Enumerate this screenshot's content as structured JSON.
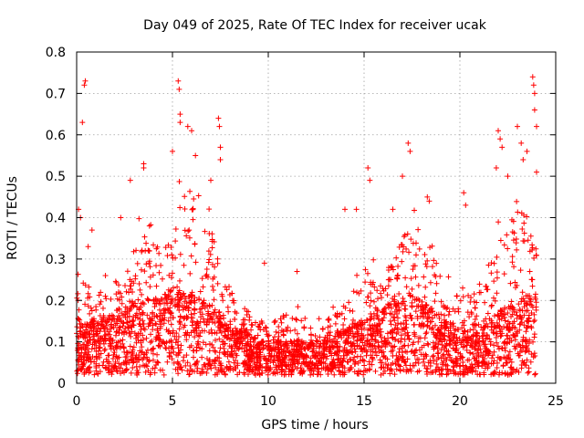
{
  "chart_data": {
    "type": "scatter",
    "title": "Day 049 of 2025, Rate Of TEC Index for receiver ucak",
    "xlabel": "GPS time / hours",
    "ylabel": "ROTI / TECUs",
    "xlim": [
      0,
      25
    ],
    "ylim": [
      0,
      0.8
    ],
    "xticks": [
      "0",
      "5",
      "10",
      "15",
      "20",
      "25"
    ],
    "yticks": [
      "0",
      "0.1",
      "0.2",
      "0.3",
      "0.4",
      "0.5",
      "0.6",
      "0.7",
      "0.8"
    ],
    "grid": true,
    "marker": "+",
    "color": "#ff0000",
    "envelope": {
      "hours": [
        0,
        0.5,
        1,
        1.5,
        2,
        2.5,
        3,
        3.5,
        4,
        4.5,
        5,
        5.5,
        6,
        6.5,
        7,
        7.5,
        8,
        8.5,
        9,
        9.5,
        10,
        10.5,
        11,
        11.5,
        12,
        12.5,
        13,
        13.5,
        14,
        14.5,
        15,
        15.5,
        16,
        16.5,
        17,
        17.5,
        18,
        18.5,
        19,
        19.5,
        20,
        20.5,
        21,
        21.5,
        22,
        22.5,
        23,
        23.5,
        24
      ],
      "typical_roti": [
        0.1,
        0.09,
        0.1,
        0.1,
        0.11,
        0.12,
        0.12,
        0.13,
        0.13,
        0.14,
        0.15,
        0.15,
        0.14,
        0.13,
        0.12,
        0.11,
        0.09,
        0.08,
        0.07,
        0.06,
        0.06,
        0.06,
        0.06,
        0.06,
        0.06,
        0.06,
        0.06,
        0.07,
        0.08,
        0.09,
        0.1,
        0.11,
        0.12,
        0.13,
        0.14,
        0.14,
        0.13,
        0.12,
        0.1,
        0.09,
        0.08,
        0.08,
        0.09,
        0.1,
        0.11,
        0.12,
        0.13,
        0.14,
        0.14
      ],
      "upper_roti": [
        0.3,
        0.28,
        0.25,
        0.26,
        0.28,
        0.3,
        0.38,
        0.42,
        0.4,
        0.4,
        0.48,
        0.55,
        0.5,
        0.45,
        0.42,
        0.35,
        0.28,
        0.22,
        0.2,
        0.18,
        0.17,
        0.18,
        0.18,
        0.19,
        0.18,
        0.17,
        0.17,
        0.2,
        0.22,
        0.26,
        0.32,
        0.3,
        0.3,
        0.35,
        0.4,
        0.45,
        0.42,
        0.38,
        0.3,
        0.25,
        0.24,
        0.25,
        0.28,
        0.32,
        0.4,
        0.45,
        0.5,
        0.48,
        0.4
      ]
    },
    "highlights": [
      {
        "x": 0.1,
        "y": 0.42
      },
      {
        "x": 0.2,
        "y": 0.4
      },
      {
        "x": 0.3,
        "y": 0.63
      },
      {
        "x": 0.4,
        "y": 0.72
      },
      {
        "x": 0.45,
        "y": 0.73
      },
      {
        "x": 0.6,
        "y": 0.33
      },
      {
        "x": 0.8,
        "y": 0.37
      },
      {
        "x": 2.3,
        "y": 0.4
      },
      {
        "x": 2.8,
        "y": 0.49
      },
      {
        "x": 3.5,
        "y": 0.52
      },
      {
        "x": 3.5,
        "y": 0.53
      },
      {
        "x": 3.8,
        "y": 0.38
      },
      {
        "x": 5.0,
        "y": 0.56
      },
      {
        "x": 5.3,
        "y": 0.73
      },
      {
        "x": 5.35,
        "y": 0.71
      },
      {
        "x": 5.4,
        "y": 0.65
      },
      {
        "x": 5.4,
        "y": 0.63
      },
      {
        "x": 5.8,
        "y": 0.62
      },
      {
        "x": 6.0,
        "y": 0.61
      },
      {
        "x": 6.2,
        "y": 0.55
      },
      {
        "x": 7.0,
        "y": 0.49
      },
      {
        "x": 7.4,
        "y": 0.64
      },
      {
        "x": 7.45,
        "y": 0.62
      },
      {
        "x": 7.5,
        "y": 0.57
      },
      {
        "x": 7.5,
        "y": 0.54
      },
      {
        "x": 9.8,
        "y": 0.29
      },
      {
        "x": 11.5,
        "y": 0.27
      },
      {
        "x": 14.0,
        "y": 0.42
      },
      {
        "x": 14.6,
        "y": 0.42
      },
      {
        "x": 15.2,
        "y": 0.52
      },
      {
        "x": 15.3,
        "y": 0.49
      },
      {
        "x": 16.5,
        "y": 0.42
      },
      {
        "x": 17.0,
        "y": 0.5
      },
      {
        "x": 17.3,
        "y": 0.58
      },
      {
        "x": 17.4,
        "y": 0.56
      },
      {
        "x": 18.3,
        "y": 0.45
      },
      {
        "x": 18.4,
        "y": 0.44
      },
      {
        "x": 20.2,
        "y": 0.46
      },
      {
        "x": 20.3,
        "y": 0.43
      },
      {
        "x": 21.9,
        "y": 0.52
      },
      {
        "x": 22.0,
        "y": 0.61
      },
      {
        "x": 22.1,
        "y": 0.59
      },
      {
        "x": 22.2,
        "y": 0.57
      },
      {
        "x": 22.5,
        "y": 0.5
      },
      {
        "x": 23.0,
        "y": 0.62
      },
      {
        "x": 23.2,
        "y": 0.58
      },
      {
        "x": 23.3,
        "y": 0.54
      },
      {
        "x": 23.5,
        "y": 0.56
      },
      {
        "x": 23.8,
        "y": 0.74
      },
      {
        "x": 23.85,
        "y": 0.72
      },
      {
        "x": 23.9,
        "y": 0.7
      },
      {
        "x": 23.9,
        "y": 0.66
      },
      {
        "x": 24.0,
        "y": 0.62
      },
      {
        "x": 24.0,
        "y": 0.51
      }
    ]
  }
}
